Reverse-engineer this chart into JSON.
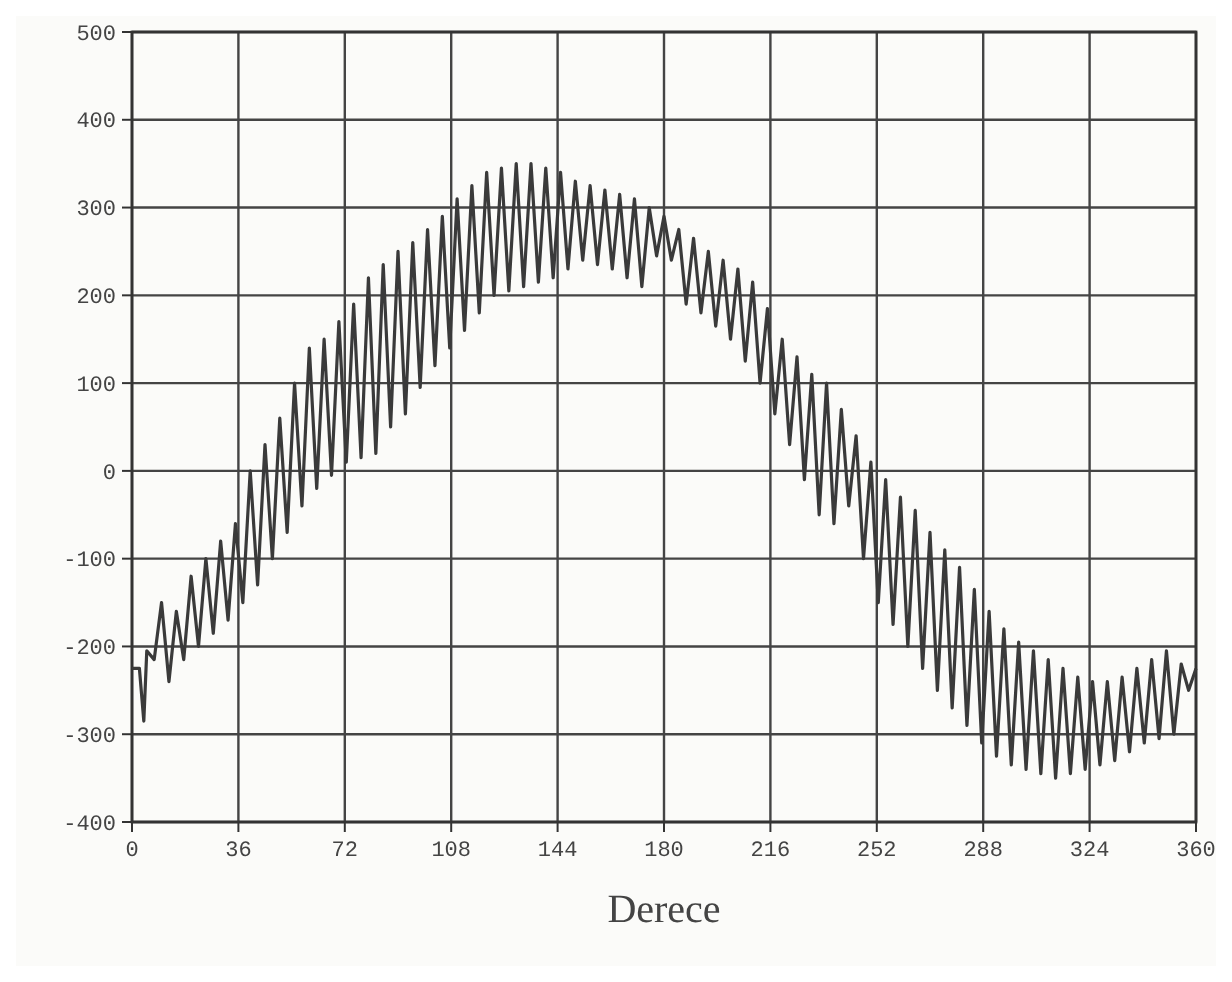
{
  "chart_data": {
    "type": "line",
    "xlabel": "Derece",
    "xlim": [
      0,
      360
    ],
    "xticks": [
      0,
      36,
      72,
      108,
      144,
      180,
      216,
      252,
      288,
      324,
      360
    ],
    "ylim": [
      -400,
      500
    ],
    "yticks": [
      -400,
      -300,
      -200,
      -100,
      0,
      100,
      200,
      300,
      400,
      500
    ],
    "grid": true,
    "marker": "none",
    "line_style": "solid",
    "series": [
      {
        "color": "#3a3a3a",
        "x": [
          0,
          2.5,
          4,
          5,
          7.5,
          10,
          12.5,
          15,
          17.5,
          20,
          22.5,
          25,
          27.5,
          30,
          32.5,
          35,
          37.5,
          40,
          42.5,
          45,
          47.5,
          50,
          52.5,
          55,
          57.5,
          60,
          62.5,
          65,
          67.5,
          70,
          72.5,
          75,
          77.5,
          80,
          82.5,
          85,
          87.5,
          90,
          92.5,
          95,
          97.5,
          100,
          102.5,
          105,
          107.5,
          110,
          112.5,
          115,
          117.5,
          120,
          122.5,
          125,
          127.5,
          130,
          132.5,
          135,
          137.5,
          140,
          142.5,
          145,
          147.5,
          150,
          152.5,
          155,
          157.5,
          160,
          162.5,
          165,
          167.5,
          170,
          172.5,
          175,
          177.5,
          180,
          182.5,
          185,
          187.5,
          190,
          192.5,
          195,
          197.5,
          200,
          202.5,
          205,
          207.5,
          210,
          212.5,
          215,
          217.5,
          220,
          222.5,
          225,
          227.5,
          230,
          232.5,
          235,
          237.5,
          240,
          242.5,
          245,
          247.5,
          250,
          252.5,
          255,
          257.5,
          260,
          262.5,
          265,
          267.5,
          270,
          272.5,
          275,
          277.5,
          280,
          282.5,
          285,
          287.5,
          290,
          292.5,
          295,
          297.5,
          300,
          302.5,
          305,
          307.5,
          310,
          312.5,
          315,
          317.5,
          320,
          322.5,
          325,
          327.5,
          330,
          332.5,
          335,
          337.5,
          340,
          342.5,
          345,
          347.5,
          350,
          352.5,
          355,
          357.5,
          360
        ],
        "values": [
          -225,
          -225,
          -285,
          -205,
          -215,
          -150,
          -240,
          -160,
          -215,
          -120,
          -200,
          -100,
          -185,
          -80,
          -170,
          -60,
          -150,
          0,
          -130,
          30,
          -100,
          60,
          -70,
          100,
          -40,
          140,
          -20,
          150,
          -5,
          170,
          10,
          190,
          15,
          220,
          20,
          235,
          50,
          250,
          65,
          260,
          95,
          275,
          120,
          290,
          140,
          310,
          160,
          325,
          180,
          340,
          200,
          345,
          205,
          350,
          210,
          350,
          215,
          345,
          220,
          340,
          230,
          330,
          240,
          325,
          235,
          320,
          230,
          315,
          220,
          310,
          210,
          300,
          245,
          290,
          240,
          275,
          190,
          265,
          180,
          250,
          165,
          240,
          150,
          230,
          125,
          215,
          100,
          185,
          65,
          150,
          30,
          130,
          -10,
          110,
          -50,
          100,
          -60,
          70,
          -40,
          40,
          -100,
          10,
          -150,
          -10,
          -175,
          -30,
          -200,
          -45,
          -225,
          -70,
          -250,
          -90,
          -270,
          -110,
          -290,
          -135,
          -310,
          -160,
          -325,
          -180,
          -335,
          -195,
          -340,
          -205,
          -345,
          -215,
          -350,
          -225,
          -345,
          -235,
          -340,
          -240,
          -335,
          -240,
          -330,
          -235,
          -320,
          -225,
          -310,
          -215,
          -305,
          -205,
          -300,
          -220,
          -250,
          -225
        ]
      }
    ]
  }
}
